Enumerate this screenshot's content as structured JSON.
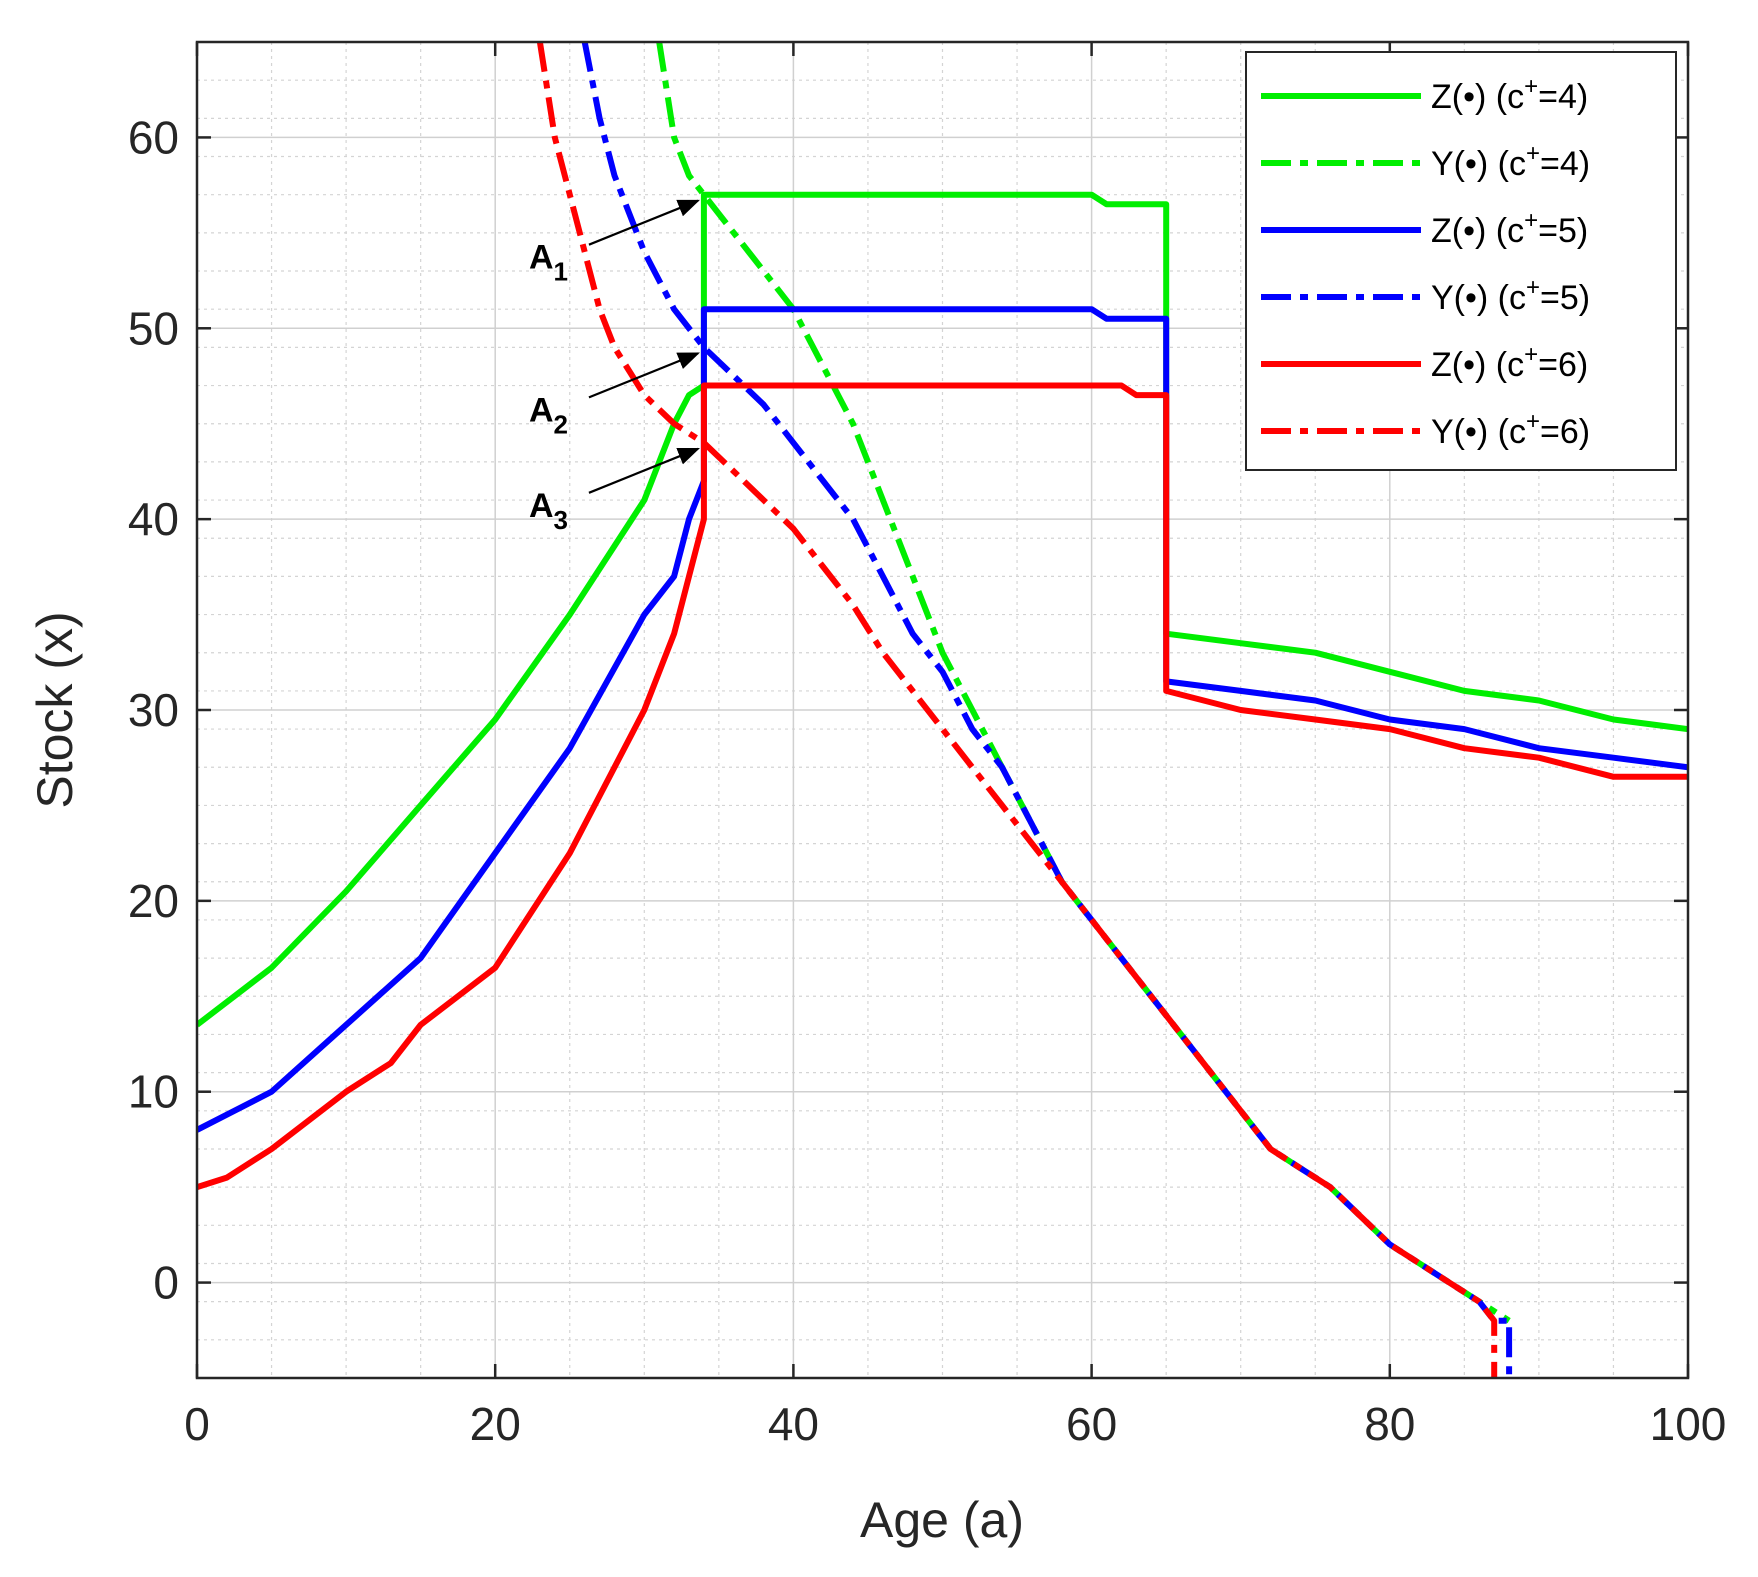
{
  "chart_data": {
    "type": "line",
    "title": "",
    "xlabel": "Age (a)",
    "ylabel": "Stock (x)",
    "xlim": [
      0,
      100
    ],
    "ylim": [
      -5,
      65
    ],
    "xticks": [
      0,
      20,
      40,
      60,
      80,
      100
    ],
    "yticks": [
      0,
      10,
      20,
      30,
      40,
      50,
      60
    ],
    "grid": true,
    "legend_position": "top-right",
    "series": [
      {
        "name": "Z(•) (c⁺=4)",
        "label_main": "Z(•) (c",
        "label_sup": "+",
        "label_tail": "=4)",
        "color": "#00ee00",
        "style": "solid",
        "points": [
          [
            0,
            13.5
          ],
          [
            5,
            16.5
          ],
          [
            10,
            20.5
          ],
          [
            15,
            25
          ],
          [
            20,
            29.5
          ],
          [
            25,
            35
          ],
          [
            30,
            41
          ],
          [
            32,
            45
          ],
          [
            33,
            46.5
          ],
          [
            34,
            47
          ],
          [
            34,
            57
          ],
          [
            60,
            57
          ],
          [
            61,
            56.5
          ],
          [
            65,
            56.5
          ],
          [
            65,
            34
          ],
          [
            70,
            33.5
          ],
          [
            75,
            33
          ],
          [
            80,
            32
          ],
          [
            85,
            31
          ],
          [
            90,
            30.5
          ],
          [
            95,
            29.5
          ],
          [
            100,
            29
          ]
        ]
      },
      {
        "name": "Y(•) (c⁺=4)",
        "label_main": "Y(•) (c",
        "label_sup": "+",
        "label_tail": "=4)",
        "color": "#00ee00",
        "style": "dashed",
        "points": [
          [
            31,
            65
          ],
          [
            32,
            60
          ],
          [
            33,
            58
          ],
          [
            34,
            57
          ],
          [
            36,
            55
          ],
          [
            38,
            53
          ],
          [
            40,
            51
          ],
          [
            42,
            48
          ],
          [
            44,
            45
          ],
          [
            46,
            41
          ],
          [
            48,
            37
          ],
          [
            50,
            33
          ],
          [
            52,
            30
          ],
          [
            54,
            27
          ],
          [
            56,
            24
          ],
          [
            58,
            21
          ],
          [
            60,
            19
          ],
          [
            62,
            17
          ],
          [
            64,
            15
          ],
          [
            66,
            13
          ],
          [
            68,
            11
          ],
          [
            70,
            9
          ],
          [
            72,
            7
          ],
          [
            74,
            6
          ],
          [
            76,
            5
          ],
          [
            78,
            3.5
          ],
          [
            80,
            2
          ],
          [
            82,
            1
          ],
          [
            84,
            0
          ],
          [
            86,
            -1
          ],
          [
            88,
            -2
          ]
        ]
      },
      {
        "name": "Z(•) (c⁺=5)",
        "label_main": "Z(•) (c",
        "label_sup": "+",
        "label_tail": "=5)",
        "color": "#0000ff",
        "style": "solid",
        "points": [
          [
            0,
            8
          ],
          [
            5,
            10
          ],
          [
            10,
            13.5
          ],
          [
            15,
            17
          ],
          [
            20,
            22.5
          ],
          [
            25,
            28
          ],
          [
            30,
            35
          ],
          [
            32,
            37
          ],
          [
            33,
            40
          ],
          [
            34,
            42
          ],
          [
            34,
            51
          ],
          [
            60,
            51
          ],
          [
            61,
            50.5
          ],
          [
            65,
            50.5
          ],
          [
            65,
            31.5
          ],
          [
            70,
            31
          ],
          [
            75,
            30.5
          ],
          [
            80,
            29.5
          ],
          [
            85,
            29
          ],
          [
            90,
            28
          ],
          [
            95,
            27.5
          ],
          [
            100,
            27
          ]
        ]
      },
      {
        "name": "Y(•) (c⁺=5)",
        "label_main": "Y(•) (c",
        "label_sup": "+",
        "label_tail": "=5)",
        "color": "#0000ff",
        "style": "dashed",
        "points": [
          [
            26,
            65
          ],
          [
            27,
            61
          ],
          [
            28,
            58
          ],
          [
            29,
            56
          ],
          [
            30,
            54
          ],
          [
            32,
            51
          ],
          [
            34,
            49
          ],
          [
            36,
            47.5
          ],
          [
            38,
            46
          ],
          [
            40,
            44
          ],
          [
            42,
            42
          ],
          [
            44,
            40
          ],
          [
            46,
            37
          ],
          [
            48,
            34
          ],
          [
            50,
            32
          ],
          [
            52,
            29
          ],
          [
            54,
            27
          ],
          [
            56,
            24
          ],
          [
            58,
            21
          ],
          [
            60,
            19
          ],
          [
            62,
            17
          ],
          [
            64,
            15
          ],
          [
            66,
            13
          ],
          [
            68,
            11
          ],
          [
            70,
            9
          ],
          [
            72,
            7
          ],
          [
            74,
            6
          ],
          [
            76,
            5
          ],
          [
            78,
            3.5
          ],
          [
            80,
            2
          ],
          [
            82,
            1
          ],
          [
            84,
            0
          ],
          [
            86,
            -1
          ],
          [
            87,
            -2
          ],
          [
            88,
            -2
          ],
          [
            88,
            -5
          ]
        ]
      },
      {
        "name": "Z(•) (c⁺=6)",
        "label_main": "Z(•) (c",
        "label_sup": "+",
        "label_tail": "=6)",
        "color": "#ff0000",
        "style": "solid",
        "points": [
          [
            0,
            5
          ],
          [
            2,
            5.5
          ],
          [
            5,
            7
          ],
          [
            10,
            10
          ],
          [
            13,
            11.5
          ],
          [
            15,
            13.5
          ],
          [
            20,
            16.5
          ],
          [
            25,
            22.5
          ],
          [
            30,
            30
          ],
          [
            32,
            34
          ],
          [
            33,
            37
          ],
          [
            34,
            40
          ],
          [
            34,
            47
          ],
          [
            60,
            47
          ],
          [
            62,
            47
          ],
          [
            63,
            46.5
          ],
          [
            65,
            46.5
          ],
          [
            65,
            31
          ],
          [
            70,
            30
          ],
          [
            75,
            29.5
          ],
          [
            80,
            29
          ],
          [
            85,
            28
          ],
          [
            90,
            27.5
          ],
          [
            95,
            26.5
          ],
          [
            100,
            26.5
          ]
        ]
      },
      {
        "name": "Y(•) (c⁺=6)",
        "label_main": "Y(•) (c",
        "label_sup": "+",
        "label_tail": "=6)",
        "color": "#ff0000",
        "style": "dashed",
        "points": [
          [
            23,
            65
          ],
          [
            24,
            60
          ],
          [
            25,
            57
          ],
          [
            26,
            54
          ],
          [
            27,
            51
          ],
          [
            28,
            49
          ],
          [
            30,
            46.5
          ],
          [
            32,
            45
          ],
          [
            34,
            44
          ],
          [
            36,
            42.5
          ],
          [
            38,
            41
          ],
          [
            40,
            39.5
          ],
          [
            42,
            37.5
          ],
          [
            44,
            35.5
          ],
          [
            46,
            33
          ],
          [
            48,
            31
          ],
          [
            50,
            29
          ],
          [
            52,
            27
          ],
          [
            54,
            25
          ],
          [
            56,
            23
          ],
          [
            58,
            21
          ],
          [
            60,
            19
          ],
          [
            62,
            17
          ],
          [
            64,
            15
          ],
          [
            66,
            13
          ],
          [
            68,
            11
          ],
          [
            70,
            9
          ],
          [
            72,
            7
          ],
          [
            74,
            6
          ],
          [
            76,
            5
          ],
          [
            78,
            3.5
          ],
          [
            80,
            2
          ],
          [
            82,
            1
          ],
          [
            84,
            0
          ],
          [
            86,
            -1
          ],
          [
            87,
            -2
          ],
          [
            87,
            -5
          ]
        ]
      }
    ],
    "annotations": [
      {
        "label": "A",
        "sub": "1",
        "x": 34,
        "y": 57
      },
      {
        "label": "A",
        "sub": "2",
        "x": 34,
        "y": 49
      },
      {
        "label": "A",
        "sub": "3",
        "x": 34,
        "y": 44
      }
    ]
  }
}
